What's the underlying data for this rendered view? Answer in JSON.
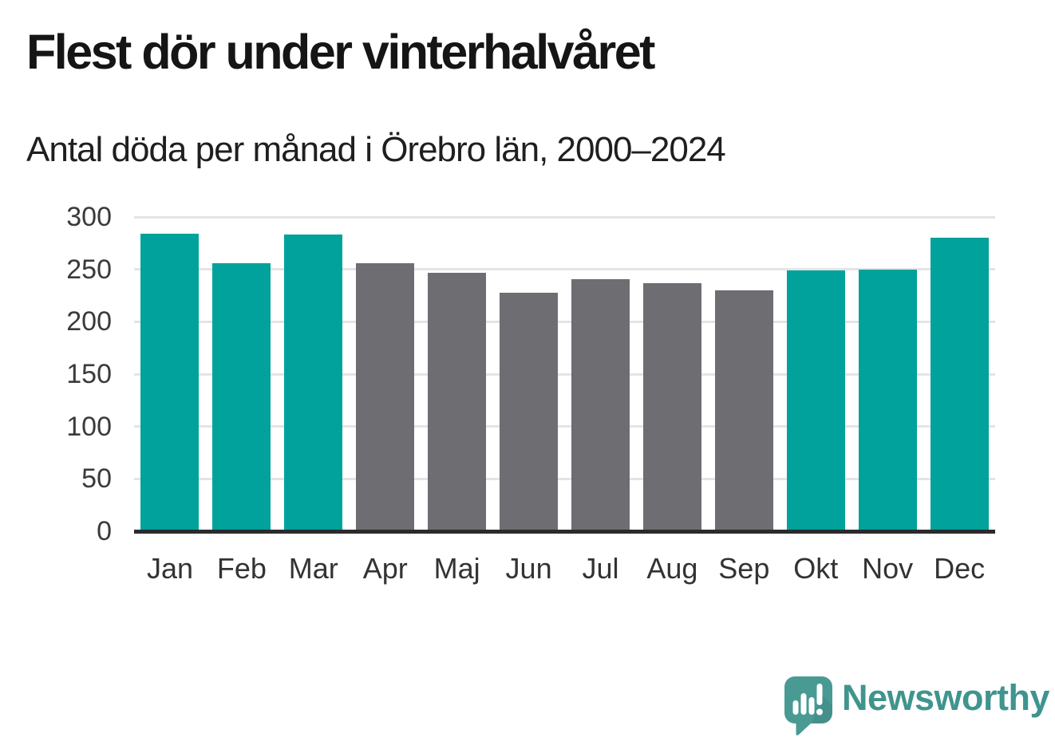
{
  "header": {
    "title": "Flest dör under vinterhalvåret",
    "subtitle": "Antal döda per månad i Örebro län, 2000–2024"
  },
  "chart_data": {
    "type": "bar",
    "title": "Flest dör under vinterhalvåret",
    "subtitle": "Antal döda per månad i Örebro län, 2000–2024",
    "categories": [
      "Jan",
      "Feb",
      "Mar",
      "Apr",
      "Maj",
      "Jun",
      "Jul",
      "Aug",
      "Sep",
      "Okt",
      "Nov",
      "Dec"
    ],
    "values": [
      284,
      256,
      283,
      256,
      247,
      228,
      241,
      237,
      230,
      249,
      250,
      280
    ],
    "bar_colors": [
      "#00a29b",
      "#00a29b",
      "#00a29b",
      "#6e6d71",
      "#6e6d71",
      "#6e6d71",
      "#6e6d71",
      "#6e6d71",
      "#6e6d71",
      "#00a29b",
      "#00a29b",
      "#00a29b"
    ],
    "highlight_color": "#00a29b",
    "muted_color": "#6e6d71",
    "highlighted_categories": [
      "Jan",
      "Feb",
      "Mar",
      "Okt",
      "Nov",
      "Dec"
    ],
    "xlabel": "",
    "ylabel": "",
    "ylim": [
      0,
      300
    ],
    "yticks": [
      0,
      50,
      100,
      150,
      200,
      250,
      300
    ],
    "grid": true,
    "legend": false
  },
  "footer": {
    "brand": "Newsworthy"
  },
  "colors": {
    "background": "#ffffff",
    "title": "#151515",
    "subtitle": "#1f1f1f",
    "axis_labels": "#3a3a3a",
    "gridline": "#e4e4e4",
    "baseline": "#2b2b2b",
    "logo_teal": "#4a9a94",
    "logo_text_teal": "#3f948e"
  }
}
